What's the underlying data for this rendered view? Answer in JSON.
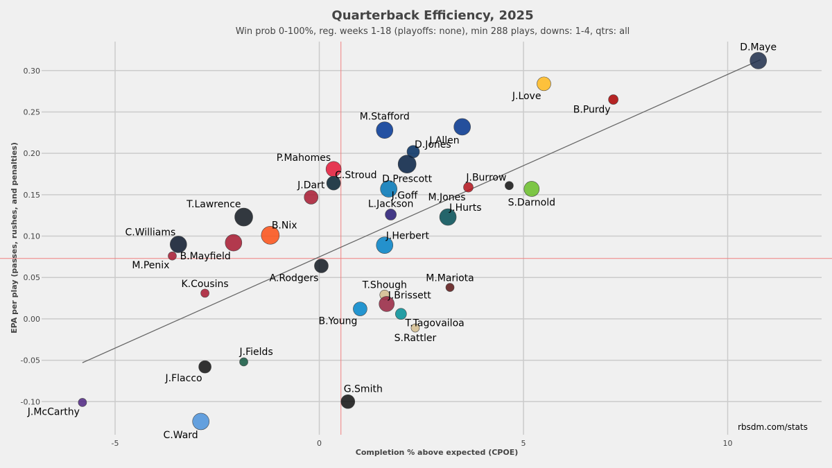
{
  "chart_data": {
    "type": "scatter",
    "title": "Quarterback Efficiency, 2025",
    "subtitle": "Win prob 0-100%, reg. weeks 1-18 (playoffs: none), min 288 plays, downs: 1-4, qtrs: all",
    "xlabel": "Completion % above expected (CPOE)",
    "ylabel": "EPA per play (passes, rushes, and penalties)",
    "xlim": [
      -6.8,
      12.3
    ],
    "ylim": [
      -0.14,
      0.335
    ],
    "xticks": [
      -5,
      0,
      5,
      10
    ],
    "xtick_labels": [
      "-5",
      "0",
      "5",
      "10"
    ],
    "yticks": [
      -0.1,
      -0.05,
      0.0,
      0.05,
      0.1,
      0.15,
      0.2,
      0.25,
      0.3
    ],
    "ytick_labels": [
      "-0.10",
      "-0.05",
      "0.00",
      "0.05",
      "0.10",
      "0.15",
      "0.20",
      "0.25",
      "0.30"
    ],
    "reference_lines": {
      "x_mean": 0.53,
      "y_mean": 0.073
    },
    "trend_line": {
      "x": [
        -5.8,
        10.8
      ],
      "y": [
        -0.053,
        0.313
      ]
    },
    "credit": "rbsdm.com/stats",
    "points": [
      {
        "name": "D.Maye",
        "x": 10.75,
        "y": 0.312,
        "size": 12,
        "color": "#1d2d4a",
        "label_pos": "above"
      },
      {
        "name": "J.Love",
        "x": 5.5,
        "y": 0.284,
        "size": 10,
        "color": "#ffb81c",
        "label_pos": "below-left"
      },
      {
        "name": "B.Purdy",
        "x": 7.2,
        "y": 0.265,
        "size": 7,
        "color": "#aa0000",
        "label_pos": "below-left"
      },
      {
        "name": "M.Stafford",
        "x": 1.6,
        "y": 0.228,
        "size": 12,
        "color": "#003594",
        "label_pos": "above"
      },
      {
        "name": "J.Allen",
        "x": 3.5,
        "y": 0.232,
        "size": 12,
        "color": "#00338d",
        "label_pos": "below-left"
      },
      {
        "name": "D.Jones",
        "x": 2.3,
        "y": 0.202,
        "size": 9,
        "color": "#002c5f",
        "label_pos": "right-top"
      },
      {
        "name": "D.Prescott",
        "x": 2.15,
        "y": 0.187,
        "size": 13,
        "color": "#041e42",
        "label_pos": "below"
      },
      {
        "name": "P.Mahomes",
        "x": 0.35,
        "y": 0.181,
        "size": 11,
        "color": "#e31837",
        "label_pos": "above-left"
      },
      {
        "name": "C.Stroud",
        "x": 0.35,
        "y": 0.164,
        "size": 10,
        "color": "#03202f",
        "label_pos": "right-top"
      },
      {
        "name": "J.Goff",
        "x": 1.7,
        "y": 0.157,
        "size": 12,
        "color": "#0076b6",
        "label_pos": "right-bottom"
      },
      {
        "name": "J.Dart",
        "x": -0.2,
        "y": 0.147,
        "size": 10,
        "color": "#a71930",
        "label_pos": "above"
      },
      {
        "name": "J.Burrow",
        "x": 4.65,
        "y": 0.161,
        "size": 6,
        "color": "#111111",
        "label_pos": "above-left"
      },
      {
        "name": "M.Jones",
        "x": 3.65,
        "y": 0.159,
        "size": 7,
        "color": "#b3121b",
        "label_pos": "below-left"
      },
      {
        "name": "S.Darnold",
        "x": 5.2,
        "y": 0.157,
        "size": 11,
        "color": "#69be28",
        "label_pos": "below"
      },
      {
        "name": "L.Jackson",
        "x": 1.75,
        "y": 0.126,
        "size": 8,
        "color": "#241773",
        "label_pos": "above"
      },
      {
        "name": "J.Hurts",
        "x": 3.15,
        "y": 0.123,
        "size": 12,
        "color": "#004c54",
        "label_pos": "right-top"
      },
      {
        "name": "T.Lawrence",
        "x": -1.85,
        "y": 0.123,
        "size": 13,
        "color": "#101820",
        "label_pos": "above-left"
      },
      {
        "name": "B.Nix",
        "x": -1.2,
        "y": 0.101,
        "size": 13,
        "color": "#fb4f14",
        "label_pos": "right-top"
      },
      {
        "name": "J.Herbert",
        "x": 1.6,
        "y": 0.089,
        "size": 12,
        "color": "#0080c6",
        "label_pos": "right-top"
      },
      {
        "name": "C.Williams",
        "x": -3.45,
        "y": 0.09,
        "size": 12,
        "color": "#0b162a",
        "label_pos": "above-left"
      },
      {
        "name": "B.Mayfield",
        "x": -2.1,
        "y": 0.092,
        "size": 12,
        "color": "#a71930",
        "label_pos": "below-left"
      },
      {
        "name": "M.Penix",
        "x": -3.6,
        "y": 0.076,
        "size": 6,
        "color": "#a71930",
        "label_pos": "below-left"
      },
      {
        "name": "A.Rodgers",
        "x": 0.05,
        "y": 0.064,
        "size": 10,
        "color": "#101820",
        "label_pos": "below-left"
      },
      {
        "name": "M.Mariota",
        "x": 3.2,
        "y": 0.038,
        "size": 6,
        "color": "#5a1414",
        "label_pos": "above"
      },
      {
        "name": "T.Shough",
        "x": 1.6,
        "y": 0.029,
        "size": 7,
        "color": "#d3bc8d",
        "label_pos": "above"
      },
      {
        "name": "K.Cousins",
        "x": -2.8,
        "y": 0.031,
        "size": 6,
        "color": "#a71930",
        "label_pos": "above"
      },
      {
        "name": "J.Brissett",
        "x": 1.65,
        "y": 0.018,
        "size": 11,
        "color": "#97233f",
        "label_pos": "right-top"
      },
      {
        "name": "B.Young",
        "x": 1.0,
        "y": 0.012,
        "size": 10,
        "color": "#0085ca",
        "label_pos": "below-left"
      },
      {
        "name": "T.Tagovailoa",
        "x": 2.0,
        "y": 0.006,
        "size": 8,
        "color": "#008e97",
        "label_pos": "below-right"
      },
      {
        "name": "S.Rattler",
        "x": 2.35,
        "y": -0.011,
        "size": 6,
        "color": "#d3bc8d",
        "label_pos": "below"
      },
      {
        "name": "J.Fields",
        "x": -1.85,
        "y": -0.052,
        "size": 6,
        "color": "#125740",
        "label_pos": "above-right"
      },
      {
        "name": "J.Flacco",
        "x": -2.8,
        "y": -0.058,
        "size": 9,
        "color": "#111111",
        "label_pos": "below-left"
      },
      {
        "name": "G.Smith",
        "x": 0.7,
        "y": -0.1,
        "size": 10,
        "color": "#111111",
        "label_pos": "above-right"
      },
      {
        "name": "J.McCarthy",
        "x": -5.8,
        "y": -0.101,
        "size": 6,
        "color": "#4f2683",
        "label_pos": "below-left"
      },
      {
        "name": "C.Ward",
        "x": -2.9,
        "y": -0.124,
        "size": 12,
        "color": "#4b92db",
        "label_pos": "below-left"
      }
    ]
  }
}
